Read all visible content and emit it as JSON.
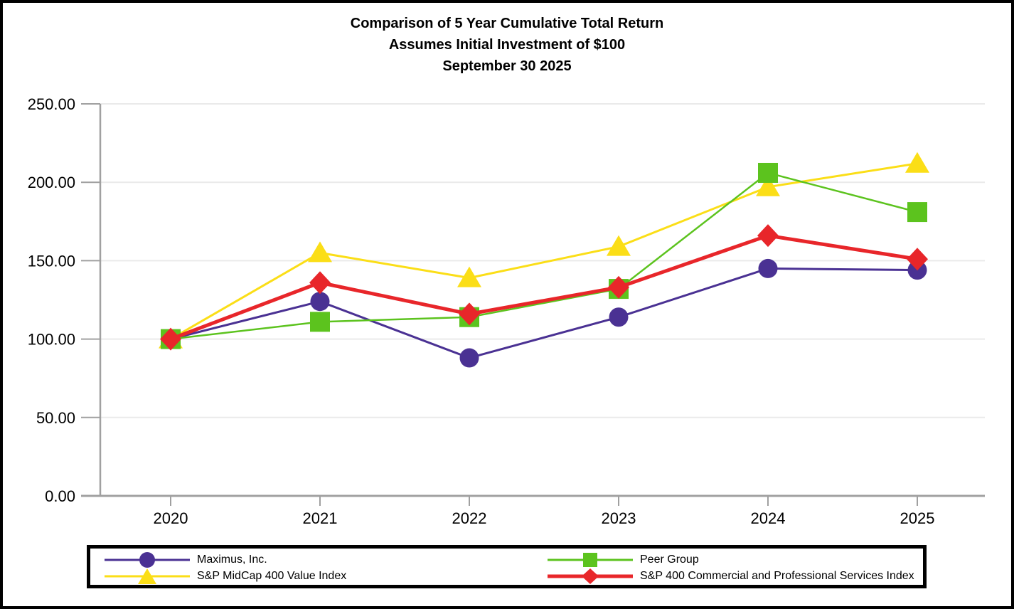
{
  "chart_data": {
    "type": "line",
    "title": "Comparison of 5 Year Cumulative Total Return",
    "subtitle": "Assumes Initial Investment of $100",
    "date_line": "September 30 2025",
    "x_labels": [
      "2020",
      "2021",
      "2022",
      "2023",
      "2024",
      "2025"
    ],
    "y_ticks": [
      0,
      50,
      100,
      150,
      200,
      250
    ],
    "y_tick_labels": [
      "0.00",
      "50.00",
      "100.00",
      "150.00",
      "200.00",
      "250.00"
    ],
    "ylim": [
      0,
      250
    ],
    "grid": "horizontal-only",
    "legend_position": "bottom-box",
    "axis_color": "#A0A0A0",
    "grid_color": "#EAEAEA",
    "series": [
      {
        "name": "Maximus, Inc.",
        "slug": "maximus-inc",
        "color": "#4A3193",
        "marker": "circle",
        "line_width": 3,
        "values": [
          100,
          124,
          88,
          114,
          145,
          144
        ]
      },
      {
        "name": "S&P MidCap 400 Value Index",
        "slug": "sp-midcap-400-value-index",
        "color": "#FBDE17",
        "marker": "triangle",
        "line_width": 3,
        "values": [
          100,
          155,
          139,
          159,
          197,
          212
        ]
      },
      {
        "name": "Peer Group",
        "slug": "peer-group",
        "color": "#5CC31E",
        "marker": "square",
        "line_width": 2.5,
        "values": [
          100,
          111,
          114,
          132,
          206,
          181
        ]
      },
      {
        "name": "S&P 400 Commercial and Professional Services Index",
        "slug": "sp-400-commercial-and-professional-services-index",
        "color": "#E8262A",
        "marker": "diamond",
        "line_width": 5,
        "values": [
          100,
          136,
          116,
          133,
          166,
          151
        ]
      }
    ],
    "legend_rows": [
      [
        0,
        2
      ],
      [
        1,
        3
      ]
    ]
  }
}
